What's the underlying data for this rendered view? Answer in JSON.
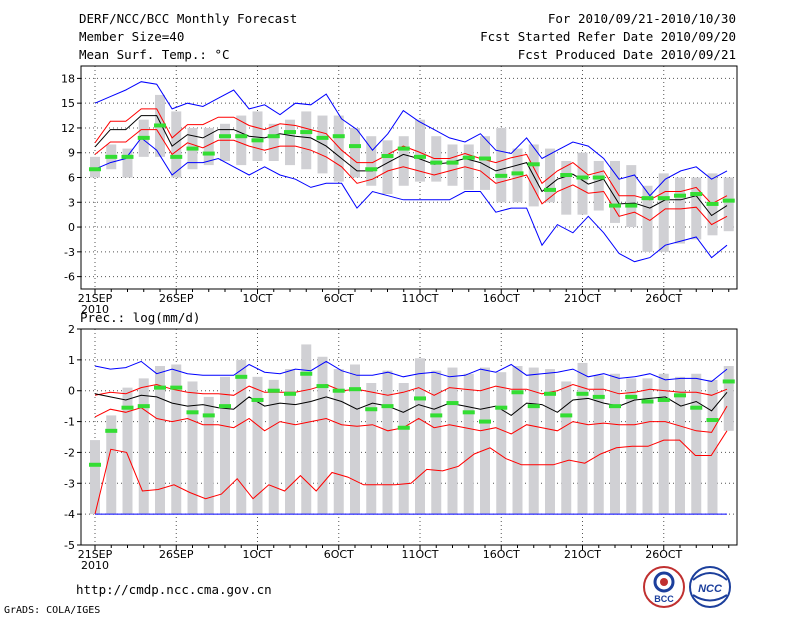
{
  "header": {
    "title": "DERF/NCC/BCC Monthly Forecast",
    "member_size": "Member Size=40",
    "variable": "Mean Surf. Temp.: °C",
    "period": "For 2010/09/21-2010/10/30",
    "started": "Fcst Started Refer Date 2010/09/20",
    "produced": "Fcst Produced Date 2010/09/21"
  },
  "footer": {
    "url": "http://cmdp.ncc.cma.gov.cn",
    "grads": "GrADS: COLA/IGES",
    "logo_bcc": "BCC",
    "logo_ncc": "NCC"
  },
  "colors": {
    "max_min": "#0000ff",
    "spread": "#ff0000",
    "mean": "#000000",
    "obs": "#33dd33",
    "box": "#d0d0d4"
  },
  "chart_data": [
    {
      "type": "line",
      "title": "Mean Surf. Temp.: °C",
      "ylim": [
        -7.5,
        19.5
      ],
      "yticks": [
        -6,
        -3,
        0,
        3,
        6,
        9,
        12,
        15,
        18
      ],
      "xlim": [
        0,
        40
      ],
      "xticks": [
        {
          "pos": 0,
          "label": "21SEP"
        },
        {
          "pos": 5,
          "label": "26SEP"
        },
        {
          "pos": 10,
          "label": "1OCT"
        },
        {
          "pos": 15,
          "label": "6OCT"
        },
        {
          "pos": 20,
          "label": "11OCT"
        },
        {
          "pos": 25,
          "label": "16OCT"
        },
        {
          "pos": 30,
          "label": "21OCT"
        },
        {
          "pos": 35,
          "label": "26OCT"
        }
      ],
      "year_label": "2010",
      "series": [
        {
          "name": "Max",
          "values": [
            15,
            15.8,
            16.6,
            17.6,
            17.3,
            14.3,
            15,
            14.6,
            15.6,
            16.6,
            14.3,
            14.8,
            13.6,
            15,
            14.8,
            16.1,
            13.1,
            11.8,
            9.3,
            11.3,
            14.1,
            12.8,
            11.8,
            10.8,
            10.3,
            11.3,
            9.3,
            8.9,
            10.8,
            8.3,
            9.3,
            10.3,
            9.8,
            8.3,
            5.8,
            6.3,
            3.8,
            5.8,
            6.8,
            7.3,
            5.8,
            6.8
          ]
        },
        {
          "name": "Upper",
          "values": [
            10.2,
            12.8,
            12.8,
            14.3,
            14.3,
            10.8,
            12.4,
            12.4,
            13.3,
            13.3,
            12.3,
            11.8,
            12.5,
            12.3,
            11.8,
            11.3,
            9.3,
            7.8,
            7.8,
            8.8,
            9.8,
            9.1,
            8.3,
            8.3,
            8.9,
            8.3,
            7.8,
            8.4,
            8.8,
            5.3,
            6.8,
            7.8,
            6.3,
            6.8,
            3.8,
            3.8,
            3.3,
            4.3,
            4.3,
            4.8,
            2.8,
            3.8
          ]
        },
        {
          "name": "Mean",
          "values": [
            9.7,
            11.8,
            11.8,
            13.5,
            13.5,
            9.8,
            11.2,
            10.8,
            11.8,
            11.8,
            11,
            10.8,
            11.3,
            11,
            10.8,
            9.8,
            8.3,
            6.8,
            6.8,
            7.8,
            8.8,
            8.3,
            7.6,
            7.8,
            8.3,
            7.8,
            6.8,
            7.3,
            7.8,
            4.3,
            5.8,
            6.4,
            5.2,
            5.8,
            2.8,
            2.9,
            2.3,
            3.3,
            3.3,
            3.8,
            1.4,
            2.6
          ]
        },
        {
          "name": "Lower",
          "values": [
            8.8,
            10.3,
            10.3,
            11.8,
            11.8,
            8.8,
            10.2,
            9.6,
            10.5,
            10.5,
            9.8,
            9.3,
            9.8,
            9.8,
            9.3,
            8.5,
            7.3,
            5.3,
            5.8,
            6.8,
            7.3,
            6.8,
            6.3,
            6.8,
            7.3,
            6.8,
            5.3,
            5.8,
            6.3,
            2.8,
            4.3,
            5.1,
            4.1,
            4.3,
            1.3,
            1.8,
            0.8,
            2.2,
            2.2,
            2.4,
            0.3,
            1.3
          ]
        },
        {
          "name": "Min",
          "values": [
            7,
            7.8,
            8.3,
            10.8,
            9.3,
            6.3,
            7.8,
            7.8,
            8.3,
            7.3,
            6.3,
            7.3,
            6.3,
            5.8,
            4.8,
            5.3,
            5.3,
            2.3,
            4.3,
            3.8,
            3.3,
            3.3,
            3.3,
            3.3,
            4.3,
            4.3,
            1.8,
            2.3,
            2.3,
            -2.2,
            0.3,
            -0.7,
            1.3,
            -0.7,
            -3.2,
            -4.2,
            -3.7,
            -2.2,
            -1.7,
            -1.2,
            -3.7,
            -2.2
          ]
        }
      ],
      "observations": [
        7,
        8.5,
        8.5,
        10.8,
        12.3,
        8.5,
        9.5,
        8.9,
        11,
        11,
        10.5,
        11,
        11.5,
        11.5,
        10.8,
        11,
        9.8,
        7,
        8.6,
        9.5,
        8.5,
        7.8,
        7.8,
        8.4,
        8.3,
        6.2,
        6.5,
        7.6,
        4.5,
        6.3,
        6,
        6,
        2.6,
        2.6,
        3.5,
        3.5,
        3.8,
        4,
        2.8,
        3.2,
        2.8
      ],
      "spread_box": [
        [
          6,
          8.5
        ],
        [
          7,
          10
        ],
        [
          6,
          9.5
        ],
        [
          8.5,
          13
        ],
        [
          8.5,
          16
        ],
        [
          6,
          14
        ],
        [
          7,
          12
        ],
        [
          7.5,
          12
        ],
        [
          8,
          12.5
        ],
        [
          7.5,
          13.5
        ],
        [
          8,
          14
        ],
        [
          8,
          12.5
        ],
        [
          7.5,
          13
        ],
        [
          7,
          14
        ],
        [
          6.5,
          13.5
        ],
        [
          5.5,
          13.5
        ],
        [
          6,
          12
        ],
        [
          5,
          11
        ],
        [
          4,
          10.5
        ],
        [
          5,
          11
        ],
        [
          5.5,
          13
        ],
        [
          5.5,
          11
        ],
        [
          5,
          10
        ],
        [
          4.5,
          10
        ],
        [
          4.5,
          11
        ],
        [
          3,
          12
        ],
        [
          3,
          9.5
        ],
        [
          2.5,
          10
        ],
        [
          3,
          9.5
        ],
        [
          1.5,
          8
        ],
        [
          1.5,
          9
        ],
        [
          2,
          8
        ],
        [
          0.5,
          8
        ],
        [
          0,
          7.5
        ],
        [
          -3,
          5
        ],
        [
          -3,
          6.5
        ],
        [
          -2,
          6
        ],
        [
          -1.5,
          6
        ],
        [
          -1,
          6.5
        ],
        [
          -0.5,
          6
        ],
        [
          -1,
          7
        ]
      ]
    },
    {
      "type": "line",
      "title": "Prec.: log(mm/d)",
      "ylim": [
        -5,
        2
      ],
      "yticks": [
        -5,
        -4,
        -3,
        -2,
        -1,
        0,
        1,
        2
      ],
      "xlim": [
        0,
        40
      ],
      "xticks": [
        {
          "pos": 0,
          "label": "21SEP"
        },
        {
          "pos": 5,
          "label": "26SEP"
        },
        {
          "pos": 10,
          "label": "1OCT"
        },
        {
          "pos": 15,
          "label": "6OCT"
        },
        {
          "pos": 20,
          "label": "11OCT"
        },
        {
          "pos": 25,
          "label": "16OCT"
        },
        {
          "pos": 30,
          "label": "21OCT"
        },
        {
          "pos": 35,
          "label": "26OCT"
        }
      ],
      "year_label": "2010",
      "series": [
        {
          "name": "Max",
          "values": [
            0.8,
            0.7,
            0.75,
            0.95,
            0.55,
            0.7,
            0.55,
            0.5,
            0.5,
            0.5,
            0.85,
            0.6,
            0.55,
            0.7,
            0.65,
            0.95,
            0.65,
            0.5,
            0.5,
            0.6,
            0.45,
            0.55,
            0.6,
            0.45,
            0.5,
            0.7,
            0.6,
            0.85,
            0.5,
            0.55,
            0.6,
            0.7,
            0.45,
            0.55,
            0.4,
            0.45,
            0.55,
            0.35,
            0.4,
            0.4,
            0.3,
            0.7
          ]
        },
        {
          "name": "Upper",
          "values": [
            -0.15,
            -0.05,
            -0.1,
            0.1,
            0.2,
            0.05,
            -0.05,
            -0.1,
            -0.1,
            -0.15,
            0.15,
            -0.05,
            -0.05,
            -0.05,
            0.05,
            0.2,
            0,
            0.05,
            -0.05,
            -0.15,
            -0.05,
            0.1,
            -0.15,
            0.1,
            0.05,
            0,
            0.15,
            0.05,
            0.05,
            -0.1,
            0,
            0.2,
            0.05,
            0.05,
            -0.1,
            -0.05,
            0.05,
            0,
            -0.05,
            -0.05,
            -0.15,
            0.05
          ]
        },
        {
          "name": "Mean",
          "values": [
            -0.1,
            -0.2,
            -0.3,
            -0.15,
            -0.2,
            -0.4,
            -0.5,
            -0.45,
            -0.55,
            -0.6,
            -0.2,
            -0.5,
            -0.4,
            -0.45,
            -0.35,
            -0.2,
            -0.35,
            -0.6,
            -0.4,
            -0.5,
            -0.7,
            -0.45,
            -0.6,
            -0.4,
            -0.5,
            -0.6,
            -0.5,
            -0.8,
            -0.4,
            -0.45,
            -0.7,
            -0.3,
            -0.25,
            -0.4,
            -0.5,
            -0.3,
            -0.25,
            -0.2,
            -0.5,
            -0.35,
            -0.65,
            -0.05
          ]
        },
        {
          "name": "Lower",
          "values": [
            -0.85,
            -0.6,
            -0.7,
            -0.55,
            -0.9,
            -1,
            -0.9,
            -1.1,
            -1.1,
            -1.2,
            -0.9,
            -1.3,
            -1,
            -1.1,
            -1,
            -0.9,
            -1.1,
            -1.15,
            -1.1,
            -1.3,
            -1.2,
            -0.9,
            -1.2,
            -1.1,
            -1.2,
            -1.3,
            -1.2,
            -1.4,
            -1.1,
            -1.2,
            -1.3,
            -1,
            -1.1,
            -1.05,
            -1.1,
            -1.1,
            -1,
            -1,
            -1.15,
            -1.3,
            -1.35,
            -0.5
          ]
        },
        {
          "name": "Lower2",
          "values": [
            -4,
            -1.9,
            -2,
            -3.25,
            -3.2,
            -3.05,
            -3.3,
            -3.5,
            -3.35,
            -2.85,
            -3.5,
            -3.05,
            -3.25,
            -2.75,
            -3.25,
            -2.65,
            -2.8,
            -3.05,
            -3.05,
            -3.05,
            -3,
            -2.55,
            -2.6,
            -2.45,
            -2.05,
            -1.85,
            -2.2,
            -2.4,
            -2.4,
            -2.4,
            -2.25,
            -2.35,
            -2.05,
            -1.85,
            -1.8,
            -1.8,
            -1.6,
            -1.6,
            -2.1,
            -2.1,
            -1.3
          ]
        },
        {
          "name": "Min",
          "values": [
            -4,
            -4,
            -4,
            -4,
            -4,
            -4,
            -4,
            -4,
            -4,
            -4,
            -4,
            -4,
            -4,
            -4,
            -4,
            -4,
            -4,
            -4,
            -4,
            -4,
            -4,
            -4,
            -4,
            -4,
            -4,
            -4,
            -4,
            -4,
            -4,
            -4,
            -4,
            -4,
            -4,
            -4,
            -4,
            -4,
            -4,
            -4,
            -4,
            -4,
            -4
          ]
        }
      ],
      "observations": [
        -2.4,
        -1.3,
        -0.55,
        -0.5,
        0.1,
        0.1,
        -0.7,
        -0.8,
        -0.5,
        0.45,
        -0.3,
        0,
        -0.1,
        0.55,
        0.15,
        0,
        0.05,
        -0.6,
        -0.5,
        -1.2,
        -0.25,
        -0.8,
        -0.4,
        -0.7,
        -1,
        -0.55,
        -0.05,
        -0.5,
        -0.1,
        -0.8,
        -0.1,
        -0.2,
        -0.5,
        -0.2,
        -0.35,
        -0.3,
        -0.15,
        -0.55,
        -0.95,
        0.3
      ],
      "spread_box": [
        [
          -4,
          -1.6
        ],
        [
          -4,
          -0.8
        ],
        [
          -4,
          0.1
        ],
        [
          -4,
          0.4
        ],
        [
          -4,
          0.8
        ],
        [
          -4,
          0.85
        ],
        [
          -4,
          0.3
        ],
        [
          -4,
          -0.2
        ],
        [
          -4,
          0.45
        ],
        [
          -4,
          1
        ],
        [
          -4,
          0.45
        ],
        [
          -4,
          0.35
        ],
        [
          -4,
          0.7
        ],
        [
          -4,
          1.5
        ],
        [
          -4,
          1.1
        ],
        [
          -4,
          0.7
        ],
        [
          -4,
          0.85
        ],
        [
          -4,
          0.25
        ],
        [
          -4,
          0.65
        ],
        [
          -4,
          0.25
        ],
        [
          -4,
          1.05
        ],
        [
          -4,
          0.65
        ],
        [
          -4,
          0.75
        ],
        [
          -4,
          0.55
        ],
        [
          -4,
          0.75
        ],
        [
          -4,
          0.6
        ],
        [
          -4,
          0.8
        ],
        [
          -4,
          0.75
        ],
        [
          -4,
          0.7
        ],
        [
          -4,
          0.3
        ],
        [
          -4,
          0.9
        ],
        [
          -4,
          0.5
        ],
        [
          -4,
          0.55
        ],
        [
          -4,
          0.4
        ],
        [
          -4,
          0.4
        ],
        [
          -4,
          0.55
        ],
        [
          -4,
          0.45
        ],
        [
          -4,
          0.55
        ],
        [
          -4,
          0.35
        ],
        [
          -1.3,
          0.8
        ]
      ]
    }
  ]
}
